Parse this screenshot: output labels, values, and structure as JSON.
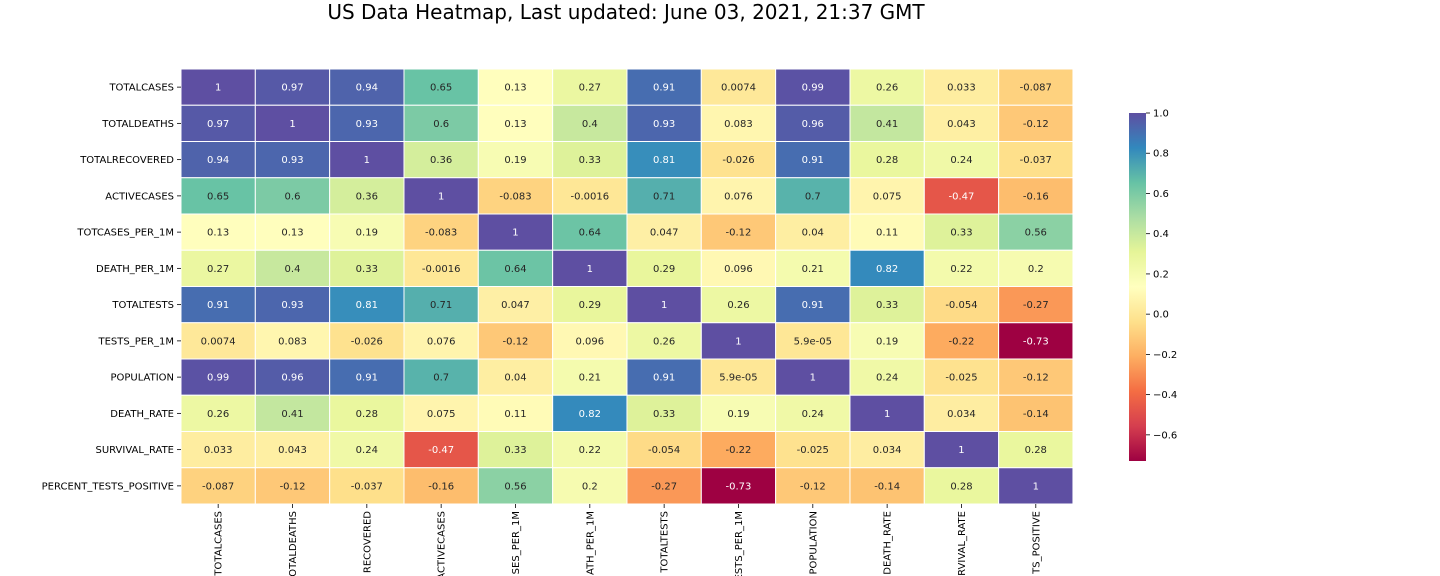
{
  "chart_data": {
    "type": "heatmap",
    "title": "US Data Heatmap, Last updated: June 03, 2021, 21:37 GMT",
    "rows": [
      "TOTALCASES",
      "TOTALDEATHS",
      "TOTALRECOVERED",
      "ACTIVECASES",
      "TOTCASES_PER_1M",
      "DEATH_PER_1M",
      "TOTALTESTS",
      "TESTS_PER_1M",
      "POPULATION",
      "DEATH_RATE",
      "SURVIVAL_RATE",
      "PERCENT_TESTS_POSITIVE"
    ],
    "columns": [
      "TOTALCASES",
      "TOTALDEATHS",
      "RECOVERED",
      "ACTIVECASES",
      "SES_PER_1M",
      "ATH_PER_1M",
      "TOTALTESTS",
      "ESTS_PER_1M",
      "POPULATION",
      "DEATH_RATE",
      "RVIVAL_RATE",
      "TS_POSITIVE"
    ],
    "values": [
      [
        1,
        0.97,
        0.94,
        0.65,
        0.13,
        0.27,
        0.91,
        0.0074,
        0.99,
        0.26,
        0.033,
        -0.087
      ],
      [
        0.97,
        1,
        0.93,
        0.6,
        0.13,
        0.4,
        0.93,
        0.083,
        0.96,
        0.41,
        0.043,
        -0.12
      ],
      [
        0.94,
        0.93,
        1,
        0.36,
        0.19,
        0.33,
        0.81,
        -0.026,
        0.91,
        0.28,
        0.24,
        -0.037
      ],
      [
        0.65,
        0.6,
        0.36,
        1,
        -0.083,
        -0.0016,
        0.71,
        0.076,
        0.7,
        0.075,
        -0.47,
        -0.16
      ],
      [
        0.13,
        0.13,
        0.19,
        -0.083,
        1,
        0.64,
        0.047,
        -0.12,
        0.04,
        0.11,
        0.33,
        0.56
      ],
      [
        0.27,
        0.4,
        0.33,
        -0.0016,
        0.64,
        1,
        0.29,
        0.096,
        0.21,
        0.82,
        0.22,
        0.2
      ],
      [
        0.91,
        0.93,
        0.81,
        0.71,
        0.047,
        0.29,
        1,
        0.26,
        0.91,
        0.33,
        -0.054,
        -0.27
      ],
      [
        0.0074,
        0.083,
        -0.026,
        0.076,
        -0.12,
        0.096,
        0.26,
        1,
        5.9e-05,
        0.19,
        -0.22,
        -0.73
      ],
      [
        0.99,
        0.96,
        0.91,
        0.7,
        0.04,
        0.21,
        0.91,
        5.9e-05,
        1,
        0.24,
        -0.025,
        -0.12
      ],
      [
        0.26,
        0.41,
        0.28,
        0.075,
        0.11,
        0.82,
        0.33,
        0.19,
        0.24,
        1,
        0.034,
        -0.14
      ],
      [
        0.033,
        0.043,
        0.24,
        -0.47,
        0.33,
        0.22,
        -0.054,
        -0.22,
        -0.025,
        0.034,
        1,
        0.28
      ],
      [
        -0.087,
        -0.12,
        -0.037,
        -0.16,
        0.56,
        0.2,
        -0.27,
        -0.73,
        -0.12,
        -0.14,
        0.28,
        1
      ]
    ],
    "labels": [
      [
        "1",
        "0.97",
        "0.94",
        "0.65",
        "0.13",
        "0.27",
        "0.91",
        "0.0074",
        "0.99",
        "0.26",
        "0.033",
        "-0.087"
      ],
      [
        "0.97",
        "1",
        "0.93",
        "0.6",
        "0.13",
        "0.4",
        "0.93",
        "0.083",
        "0.96",
        "0.41",
        "0.043",
        "-0.12"
      ],
      [
        "0.94",
        "0.93",
        "1",
        "0.36",
        "0.19",
        "0.33",
        "0.81",
        "-0.026",
        "0.91",
        "0.28",
        "0.24",
        "-0.037"
      ],
      [
        "0.65",
        "0.6",
        "0.36",
        "1",
        "-0.083",
        "-0.0016",
        "0.71",
        "0.076",
        "0.7",
        "0.075",
        "-0.47",
        "-0.16"
      ],
      [
        "0.13",
        "0.13",
        "0.19",
        "-0.083",
        "1",
        "0.64",
        "0.047",
        "-0.12",
        "0.04",
        "0.11",
        "0.33",
        "0.56"
      ],
      [
        "0.27",
        "0.4",
        "0.33",
        "-0.0016",
        "0.64",
        "1",
        "0.29",
        "0.096",
        "0.21",
        "0.82",
        "0.22",
        "0.2"
      ],
      [
        "0.91",
        "0.93",
        "0.81",
        "0.71",
        "0.047",
        "0.29",
        "1",
        "0.26",
        "0.91",
        "0.33",
        "-0.054",
        "-0.27"
      ],
      [
        "0.0074",
        "0.083",
        "-0.026",
        "0.076",
        "-0.12",
        "0.096",
        "0.26",
        "1",
        "5.9e-05",
        "0.19",
        "-0.22",
        "-0.73"
      ],
      [
        "0.99",
        "0.96",
        "0.91",
        "0.7",
        "0.04",
        "0.21",
        "0.91",
        "5.9e-05",
        "1",
        "0.24",
        "-0.025",
        "-0.12"
      ],
      [
        "0.26",
        "0.41",
        "0.28",
        "0.075",
        "0.11",
        "0.82",
        "0.33",
        "0.19",
        "0.24",
        "1",
        "0.034",
        "-0.14"
      ],
      [
        "0.033",
        "0.043",
        "0.24",
        "-0.47",
        "0.33",
        "0.22",
        "-0.054",
        "-0.22",
        "-0.025",
        "0.034",
        "1",
        "0.28"
      ],
      [
        "-0.087",
        "-0.12",
        "-0.037",
        "-0.16",
        "0.56",
        "0.2",
        "-0.27",
        "-0.73",
        "-0.12",
        "-0.14",
        "0.28",
        "1"
      ]
    ],
    "colormap": "Spectral",
    "vmin": -0.73,
    "vmax": 1,
    "colorbar_ticks": [
      "1.0",
      "0.8",
      "0.6",
      "0.4",
      "0.2",
      "0.0",
      "−0.2",
      "−0.4",
      "−0.6"
    ],
    "colorbar_values": [
      1.0,
      0.8,
      0.6,
      0.4,
      0.2,
      0.0,
      -0.2,
      -0.4,
      -0.6
    ],
    "colormap_stops": [
      "#9e0142",
      "#d53e4f",
      "#f46d43",
      "#fdae61",
      "#fee08b",
      "#ffffbf",
      "#e6f598",
      "#abdda4",
      "#66c2a5",
      "#3288bd",
      "#5e4fa2"
    ]
  }
}
